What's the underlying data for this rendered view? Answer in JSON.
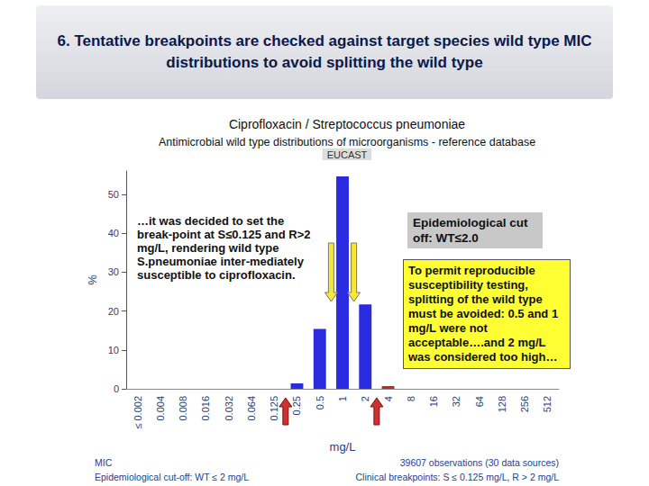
{
  "slide_title": "6. Tentative breakpoints are checked against target species wild type MIC distributions to avoid splitting the wild type",
  "chart_data": {
    "type": "bar",
    "title": "Ciprofloxacin / Streptococcus pneumoniae",
    "subtitle": "Antimicrobial wild type distributions of microorganisms - reference database",
    "source": "EUCAST",
    "x_label": "mg/L",
    "y_label": "%",
    "categories": [
      "≤ 0.002",
      "0.004",
      "0.008",
      "0.016",
      "0.032",
      "0.064",
      "0.125",
      "0.25",
      "0.5",
      "1",
      "2",
      "4",
      "8",
      "16",
      "32",
      "64",
      "128",
      "256",
      "512"
    ],
    "values": [
      0,
      0,
      0,
      0,
      0,
      0,
      0,
      1.4,
      15.4,
      54.6,
      21.7,
      0.7,
      0,
      0,
      0,
      0,
      0,
      0,
      0
    ],
    "colors": [
      "#2a2ae0",
      "#2a2ae0",
      "#2a2ae0",
      "#2a2ae0",
      "#2a2ae0",
      "#2a2ae0",
      "#2a2ae0",
      "#2a2ae0",
      "#2a2ae0",
      "#2a2ae0",
      "#2a2ae0",
      "#c0282d",
      "#2a2ae0",
      "#2a2ae0",
      "#2a2ae0",
      "#2a2ae0",
      "#2a2ae0",
      "#2a2ae0",
      "#2a2ae0"
    ],
    "ylim": [
      0,
      56
    ],
    "yticks": [
      0,
      10,
      20,
      30,
      40,
      50
    ],
    "grid": false,
    "annotations": [
      "…it was decided to set the break-point at S≤0.125 and R>2 mg/L, rendering wild type S.pneumoniae inter-mediately susceptible to ciprofloxacin.",
      "Epidemiological cut off: WT≤2.0",
      "To permit reproducible susceptibility testing, splitting of the wild type must be avoided: 0.5 and 1 mg/L were not acceptable….and 2 mg/L was considered too high…"
    ],
    "footer": [
      "MIC",
      "Epidemiological cut-off: WT ≤ 2 mg/L",
      "39607 observations (30 data sources)",
      "Clinical breakpoints: S ≤ 0.125 mg/L, R > 2 mg/L"
    ]
  }
}
